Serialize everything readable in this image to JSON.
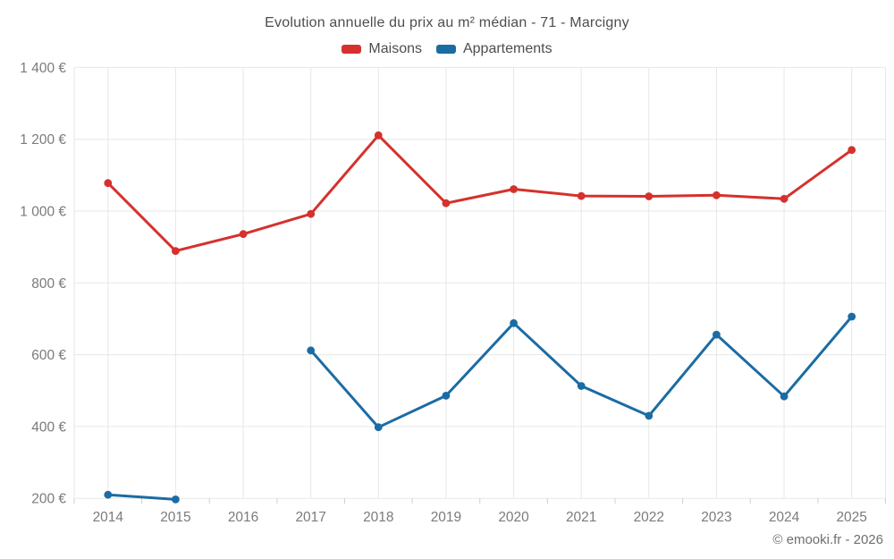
{
  "watermark": "© emooki.fr - 2026",
  "colors": {
    "maisons": "#d5312d",
    "appartements": "#1b6ca3",
    "gridline": "#e7e7e7",
    "tick": "#cfcfcf",
    "axis_text": "#7b7b7b",
    "title_text": "#4e4e4e"
  },
  "chart_data": {
    "type": "line",
    "title": "Evolution annuelle du prix au m² médian - 71 - Marcigny",
    "x": [
      "2014",
      "2015",
      "2016",
      "2017",
      "2018",
      "2019",
      "2020",
      "2021",
      "2022",
      "2023",
      "2024",
      "2025"
    ],
    "series": [
      {
        "name": "Maisons",
        "color": "#d5312d",
        "values": [
          1078,
          889,
          936,
          992,
          1211,
          1022,
          1061,
          1042,
          1041,
          1044,
          1034,
          1170
        ]
      },
      {
        "name": "Appartements",
        "color": "#1b6ca3",
        "values": [
          210,
          197,
          null,
          612,
          398,
          486,
          688,
          513,
          430,
          656,
          484,
          706
        ]
      }
    ],
    "xlabel": "",
    "ylabel": "",
    "ylim": [
      200,
      1400
    ],
    "yticks": [
      {
        "v": 200,
        "label": "200 €"
      },
      {
        "v": 400,
        "label": "400 €"
      },
      {
        "v": 600,
        "label": "600 €"
      },
      {
        "v": 800,
        "label": "800 €"
      },
      {
        "v": 1000,
        "label": "1 000 €"
      },
      {
        "v": 1200,
        "label": "1 200 €"
      },
      {
        "v": 1400,
        "label": "1 400 €"
      }
    ],
    "grid": true,
    "legend_position": "top",
    "unit": "€"
  }
}
